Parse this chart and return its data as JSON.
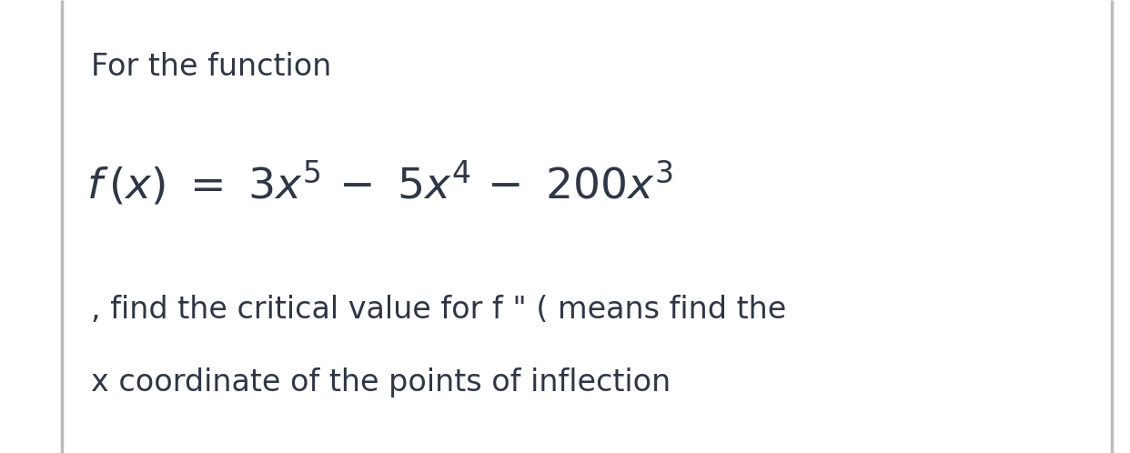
{
  "bg_color": "#ffffff",
  "border_color": "#bbbbbb",
  "text_color": "#2d3748",
  "line1": "For the function",
  "line1_fontsize": 24,
  "formula_fontsize": 34,
  "body_fontsize": 24,
  "line3": ", find the critical value for f \" ( means find the",
  "line4": "x coordinate of the points of inflection",
  "fig_width": 12.42,
  "fig_height": 4.98,
  "dpi": 100
}
